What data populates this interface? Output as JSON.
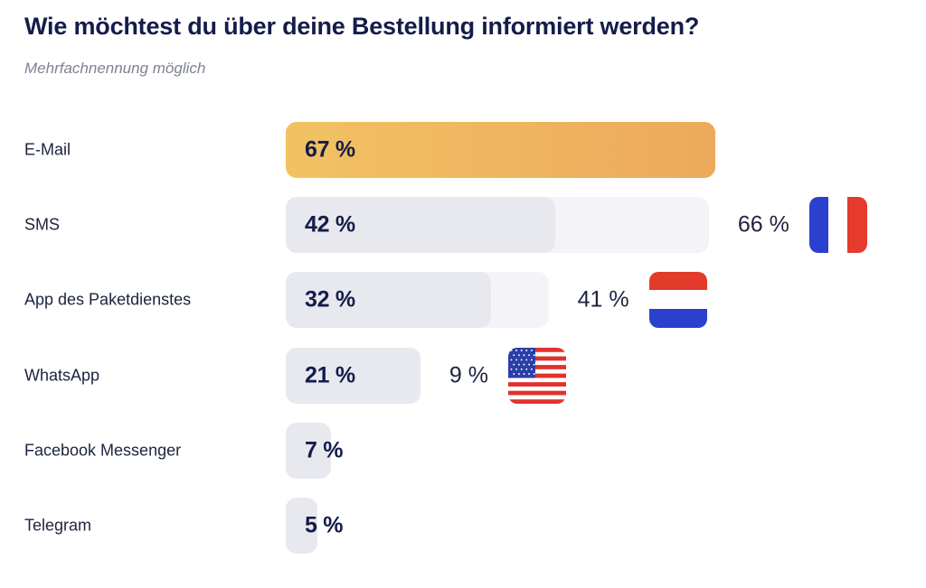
{
  "title": "Wie möchtest du über deine Bestellung informiert werden?",
  "subtitle": "Mehrfachnennung möglich",
  "colors": {
    "accent_start": "#f1c262",
    "accent_end": "#eda95c",
    "bar": "#e8e9ef",
    "track": "#f4f4f8",
    "text": "#141c4a"
  },
  "chart_data": {
    "type": "bar",
    "orientation": "horizontal",
    "title": "Wie möchtest du über deine Bestellung informiert werden?",
    "subtitle": "Mehrfachnennung möglich",
    "categories": [
      "E-Mail",
      "SMS",
      "App des Paketdienstes",
      "WhatsApp",
      "Facebook Messenger",
      "Telegram"
    ],
    "values": [
      67,
      42,
      32,
      21,
      7,
      5
    ],
    "value_labels": [
      "67 %",
      "42 %",
      "32 %",
      "21 %",
      "7 %",
      "5 %"
    ],
    "unit": "%",
    "highlight_index": 0,
    "comparisons": [
      {
        "category": "SMS",
        "country": "Frankreich",
        "flag": "france-flag-icon",
        "value": 66,
        "label": "66 %"
      },
      {
        "category": "App des Paketdienstes",
        "country": "Niederlande",
        "flag": "netherlands-flag-icon",
        "value": 41,
        "label": "41 %"
      },
      {
        "category": "WhatsApp",
        "country": "USA",
        "flag": "usa-flag-icon",
        "value": 9,
        "label": "9 %"
      }
    ]
  }
}
